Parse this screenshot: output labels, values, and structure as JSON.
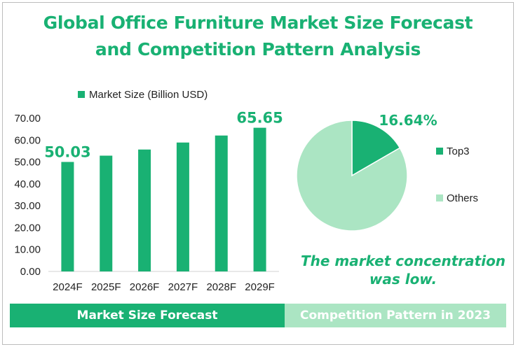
{
  "title_line1": "Global Office Furniture Market Size Forecast",
  "title_line2": "and Competition Pattern Analysis",
  "note_line1": "The market concentration",
  "note_line2": "was low.",
  "band_left": "Market Size Forecast",
  "band_right": "Competition Pattern in 2023",
  "colors": {
    "accent": "#19b173",
    "light": "#abe5c3",
    "text": "#222222"
  },
  "chart_data": [
    {
      "type": "bar",
      "legend_label": "Market Size (Billion USD)",
      "legend_position": "top",
      "categories": [
        "2024F",
        "2025F",
        "2026F",
        "2027F",
        "2028F",
        "2029F"
      ],
      "series": [
        {
          "name": "Market Size (Billion USD)",
          "values": [
            50.03,
            52.9,
            55.7,
            58.9,
            62.1,
            65.65
          ]
        }
      ],
      "data_labels": [
        {
          "index": 0,
          "text": "50.03"
        },
        {
          "index": 5,
          "text": "65.65"
        }
      ],
      "yticks": [
        "0.00",
        "10.00",
        "20.00",
        "30.00",
        "40.00",
        "50.00",
        "60.00",
        "70.00"
      ],
      "ylim": [
        0,
        70
      ],
      "grid": false
    },
    {
      "type": "pie",
      "slices": [
        {
          "label": "Top3",
          "value": 16.64
        },
        {
          "label": "Others",
          "value": 83.36
        }
      ],
      "data_label": "16.64%",
      "legend_position": "right"
    }
  ]
}
